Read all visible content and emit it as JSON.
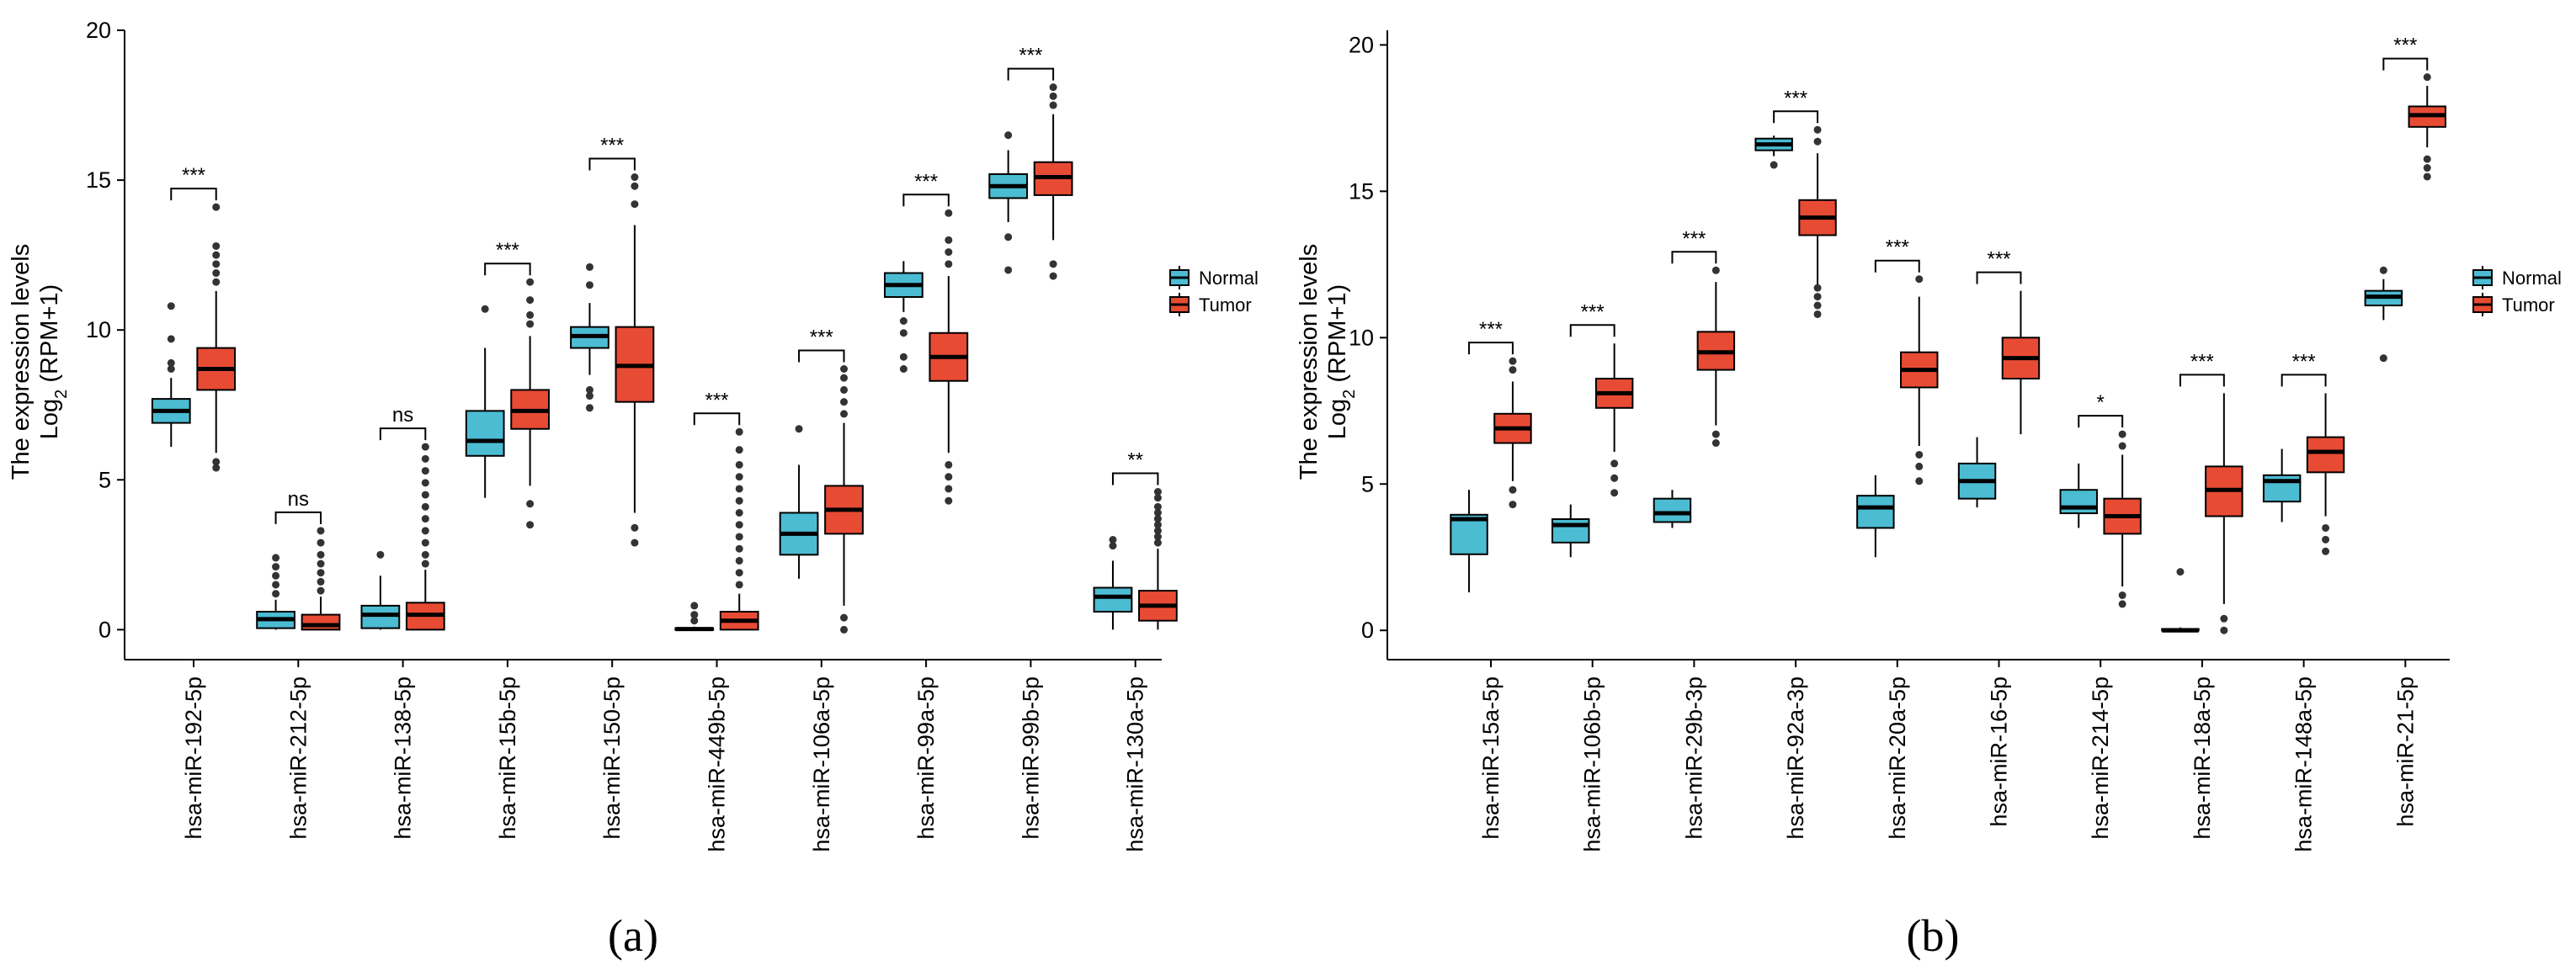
{
  "figure": {
    "panels": [
      {
        "label": "(a)"
      },
      {
        "label": "(b)"
      }
    ]
  },
  "colors": {
    "Normal": "#4bbcd2",
    "Tumor": "#e84b34"
  },
  "chart_data": [
    {
      "type": "box",
      "panel": "(a)",
      "ylabel_line1": "The expression levels",
      "ylabel_line2": "Log",
      "ylabel_sub": "2",
      "ylabel_line2_suffix": " (RPM+1)",
      "ylim": [
        -1,
        20
      ],
      "yticks": [
        0,
        5,
        10,
        15,
        20
      ],
      "legend": {
        "placement": "right",
        "entries": [
          "Normal",
          "Tumor"
        ]
      },
      "categories": [
        "hsa-miR-192-5p",
        "hsa-miR-212-5p",
        "hsa-miR-138-5p",
        "hsa-miR-15b-5p",
        "hsa-miR-150-5p",
        "hsa-miR-449b-5p",
        "hsa-miR-106a-5p",
        "hsa-miR-99a-5p",
        "hsa-miR-99b-5p",
        "hsa-miR-130a-5p"
      ],
      "significance": [
        "***",
        "ns",
        "ns",
        "***",
        "***",
        "***",
        "***",
        "***",
        "***",
        "**"
      ],
      "series": [
        {
          "name": "Normal",
          "boxes": [
            {
              "lw": 6.1,
              "q1": 6.9,
              "med": 7.3,
              "q3": 7.7,
              "uw": 8.4,
              "out": [
                8.7,
                8.9,
                9.7,
                10.8
              ]
            },
            {
              "lw": 0.0,
              "q1": 0.05,
              "med": 0.35,
              "q3": 0.6,
              "uw": 1.0,
              "out": [
                1.2,
                1.5,
                1.8,
                2.1,
                2.4
              ]
            },
            {
              "lw": 0.0,
              "q1": 0.05,
              "med": 0.5,
              "q3": 0.8,
              "uw": 1.8,
              "out": [
                2.5
              ]
            },
            {
              "lw": 4.4,
              "q1": 5.8,
              "med": 6.3,
              "q3": 7.3,
              "uw": 9.4,
              "out": [
                10.7
              ]
            },
            {
              "lw": 8.5,
              "q1": 9.4,
              "med": 9.8,
              "q3": 10.1,
              "uw": 10.9,
              "out": [
                7.4,
                7.8,
                8.0,
                11.5,
                12.1
              ]
            },
            {
              "lw": 0.0,
              "q1": 0.0,
              "med": 0.02,
              "q3": 0.05,
              "uw": 0.1,
              "out": [
                0.3,
                0.5,
                0.8
              ]
            },
            {
              "lw": 1.7,
              "q1": 2.5,
              "med": 3.2,
              "q3": 3.9,
              "uw": 5.5,
              "out": [
                6.7
              ]
            },
            {
              "lw": 10.6,
              "q1": 11.1,
              "med": 11.5,
              "q3": 11.9,
              "uw": 12.3,
              "out": [
                10.3,
                9.9,
                9.1,
                8.7
              ]
            },
            {
              "lw": 13.6,
              "q1": 14.4,
              "med": 14.8,
              "q3": 15.2,
              "uw": 16.0,
              "out": [
                13.1,
                12.0,
                16.5
              ]
            },
            {
              "lw": 0.0,
              "q1": 0.6,
              "med": 1.1,
              "q3": 1.4,
              "uw": 2.3,
              "out": [
                2.8,
                3.0
              ]
            }
          ]
        },
        {
          "name": "Tumor",
          "boxes": [
            {
              "lw": 5.9,
              "q1": 8.0,
              "med": 8.7,
              "q3": 9.4,
              "uw": 11.3,
              "out": [
                5.4,
                5.6,
                11.6,
                11.9,
                12.2,
                12.5,
                12.8,
                14.1
              ]
            },
            {
              "lw": 0.0,
              "q1": 0.0,
              "med": 0.15,
              "q3": 0.5,
              "uw": 1.1,
              "out": [
                1.3,
                1.6,
                1.9,
                2.2,
                2.5,
                2.9,
                3.3
              ]
            },
            {
              "lw": 0.0,
              "q1": 0.0,
              "med": 0.5,
              "q3": 0.9,
              "uw": 2.0,
              "out": [
                2.2,
                2.5,
                2.9,
                3.3,
                3.7,
                4.1,
                4.5,
                4.9,
                5.3,
                5.7,
                6.1
              ]
            },
            {
              "lw": 4.8,
              "q1": 6.7,
              "med": 7.3,
              "q3": 8.0,
              "uw": 9.8,
              "out": [
                3.5,
                4.2,
                10.2,
                10.5,
                11.0,
                11.6
              ]
            },
            {
              "lw": 3.9,
              "q1": 7.6,
              "med": 8.8,
              "q3": 10.1,
              "uw": 13.5,
              "out": [
                2.9,
                3.4,
                14.2,
                14.8,
                15.1
              ]
            },
            {
              "lw": 0.0,
              "q1": 0.0,
              "med": 0.3,
              "q3": 0.6,
              "uw": 1.2,
              "out": [
                1.5,
                1.9,
                2.3,
                2.7,
                3.1,
                3.5,
                3.9,
                4.3,
                4.7,
                5.1,
                5.5,
                6.0,
                6.6
              ]
            },
            {
              "lw": 0.8,
              "q1": 3.2,
              "med": 4.0,
              "q3": 4.8,
              "uw": 6.9,
              "out": [
                0.0,
                0.4,
                7.2,
                7.6,
                8.0,
                8.4,
                8.7
              ]
            },
            {
              "lw": 5.9,
              "q1": 8.3,
              "med": 9.1,
              "q3": 9.9,
              "uw": 11.8,
              "out": [
                4.3,
                4.7,
                5.1,
                5.5,
                12.2,
                12.6,
                13.0,
                13.9
              ]
            },
            {
              "lw": 13.0,
              "q1": 14.5,
              "med": 15.1,
              "q3": 15.6,
              "uw": 17.2,
              "out": [
                11.8,
                12.2,
                17.5,
                17.8,
                18.1
              ]
            },
            {
              "lw": 0.0,
              "q1": 0.3,
              "med": 0.8,
              "q3": 1.3,
              "uw": 2.7,
              "out": [
                2.9,
                3.1,
                3.3,
                3.5,
                3.7,
                3.9,
                4.1,
                4.4,
                4.6
              ]
            }
          ]
        }
      ]
    },
    {
      "type": "box",
      "panel": "(b)",
      "ylabel_line1": "The expression levels",
      "ylabel_line2": "Log",
      "ylabel_sub": "2",
      "ylabel_line2_suffix": " (RPM+1)",
      "ylim": [
        -1,
        20.5
      ],
      "yticks": [
        0,
        5,
        10,
        15,
        20
      ],
      "legend": {
        "placement": "right",
        "entries": [
          "Normal",
          "Tumor"
        ]
      },
      "categories": [
        "hsa-miR-15a-5p",
        "hsa-miR-106b-5p",
        "hsa-miR-29b-3p",
        "hsa-miR-92a-3p",
        "hsa-miR-20a-5p",
        "hsa-miR-16-5p",
        "hsa-miR-214-5p",
        "hsa-miR-18a-5p",
        "hsa-miR-148a-5p",
        "hsa-miR-21-5p"
      ],
      "significance": [
        "***",
        "***",
        "***",
        "***",
        "***",
        "***",
        "*",
        "***",
        "***",
        "***"
      ],
      "series": [
        {
          "name": "Normal",
          "boxes": [
            {
              "lw": 1.3,
              "q1": 2.6,
              "med": 3.8,
              "q3": 3.95,
              "uw": 4.8,
              "out": []
            },
            {
              "lw": 2.5,
              "q1": 3.0,
              "med": 3.6,
              "q3": 3.8,
              "uw": 4.3,
              "out": []
            },
            {
              "lw": 3.5,
              "q1": 3.7,
              "med": 4.0,
              "q3": 4.5,
              "uw": 4.8,
              "out": []
            },
            {
              "lw": 16.2,
              "q1": 16.4,
              "med": 16.6,
              "q3": 16.8,
              "uw": 16.9,
              "out": [
                15.9
              ]
            },
            {
              "lw": 2.5,
              "q1": 3.5,
              "med": 4.2,
              "q3": 4.6,
              "uw": 5.3,
              "out": []
            },
            {
              "lw": 4.2,
              "q1": 4.5,
              "med": 5.1,
              "q3": 5.7,
              "uw": 6.6,
              "out": []
            },
            {
              "lw": 3.5,
              "q1": 4.0,
              "med": 4.2,
              "q3": 4.8,
              "uw": 5.7,
              "out": []
            },
            {
              "lw": 0.0,
              "q1": 0.0,
              "med": 0.0,
              "q3": 0.05,
              "uw": 0.1,
              "out": [
                2.0
              ]
            },
            {
              "lw": 3.7,
              "q1": 4.4,
              "med": 5.1,
              "q3": 5.3,
              "uw": 6.2,
              "out": []
            },
            {
              "lw": 10.6,
              "q1": 11.1,
              "med": 11.4,
              "q3": 11.6,
              "uw": 12.0,
              "out": [
                9.3,
                12.3
              ]
            }
          ]
        },
        {
          "name": "Tumor",
          "boxes": [
            {
              "lw": 5.1,
              "q1": 6.4,
              "med": 6.9,
              "q3": 7.4,
              "uw": 8.5,
              "out": [
                4.3,
                4.8,
                8.9,
                9.2
              ]
            },
            {
              "lw": 6.1,
              "q1": 7.6,
              "med": 8.1,
              "q3": 8.6,
              "uw": 9.8,
              "out": [
                4.7,
                5.2,
                5.7
              ]
            },
            {
              "lw": 7.0,
              "q1": 8.9,
              "med": 9.5,
              "q3": 10.2,
              "uw": 11.9,
              "out": [
                6.4,
                6.7,
                12.3
              ]
            },
            {
              "lw": 11.8,
              "q1": 13.5,
              "med": 14.1,
              "q3": 14.7,
              "uw": 16.3,
              "out": [
                10.8,
                11.1,
                11.4,
                11.7,
                16.7,
                17.1
              ]
            },
            {
              "lw": 6.3,
              "q1": 8.3,
              "med": 8.9,
              "q3": 9.5,
              "uw": 11.4,
              "out": [
                5.1,
                5.6,
                6.0,
                12.0
              ]
            },
            {
              "lw": 6.7,
              "q1": 8.6,
              "med": 9.3,
              "q3": 10.0,
              "uw": 11.6,
              "out": []
            },
            {
              "lw": 1.5,
              "q1": 3.3,
              "med": 3.9,
              "q3": 4.5,
              "uw": 6.0,
              "out": [
                0.9,
                1.2,
                6.3,
                6.7
              ]
            },
            {
              "lw": 0.9,
              "q1": 3.9,
              "med": 4.8,
              "q3": 5.6,
              "uw": 8.1,
              "out": [
                0.0,
                0.4
              ]
            },
            {
              "lw": 3.9,
              "q1": 5.4,
              "med": 6.1,
              "q3": 6.6,
              "uw": 8.1,
              "out": [
                2.7,
                3.1,
                3.5
              ]
            },
            {
              "lw": 16.5,
              "q1": 17.2,
              "med": 17.6,
              "q3": 17.9,
              "uw": 18.6,
              "out": [
                15.5,
                15.8,
                16.1,
                18.9
              ]
            }
          ]
        }
      ]
    }
  ]
}
